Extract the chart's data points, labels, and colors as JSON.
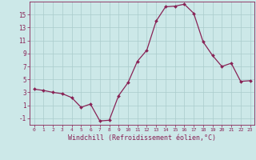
{
  "x": [
    0,
    1,
    2,
    3,
    4,
    5,
    6,
    7,
    8,
    9,
    10,
    11,
    12,
    13,
    14,
    15,
    16,
    17,
    18,
    19,
    20,
    21,
    22,
    23
  ],
  "y": [
    3.5,
    3.3,
    3.0,
    2.8,
    2.2,
    0.7,
    1.2,
    -1.4,
    -1.3,
    2.5,
    4.5,
    7.8,
    9.5,
    14.0,
    16.2,
    16.3,
    16.6,
    15.2,
    10.8,
    8.7,
    7.0,
    7.5,
    4.7,
    4.8
  ],
  "line_color": "#882255",
  "marker": "D",
  "marker_size": 2.0,
  "linewidth": 0.9,
  "xlabel": "Windchill (Refroidissement éolien,°C)",
  "xlabel_fontsize": 6.0,
  "yticks": [
    -1,
    1,
    3,
    5,
    7,
    9,
    11,
    13,
    15
  ],
  "xlim": [
    -0.5,
    23.5
  ],
  "ylim": [
    -2.0,
    17.0
  ],
  "bg_color": "#cce8e8",
  "grid_color": "#aacccc",
  "tick_label_color": "#882255",
  "spine_color": "#882255",
  "xtick_fontsize": 4.5,
  "ytick_fontsize": 5.5
}
